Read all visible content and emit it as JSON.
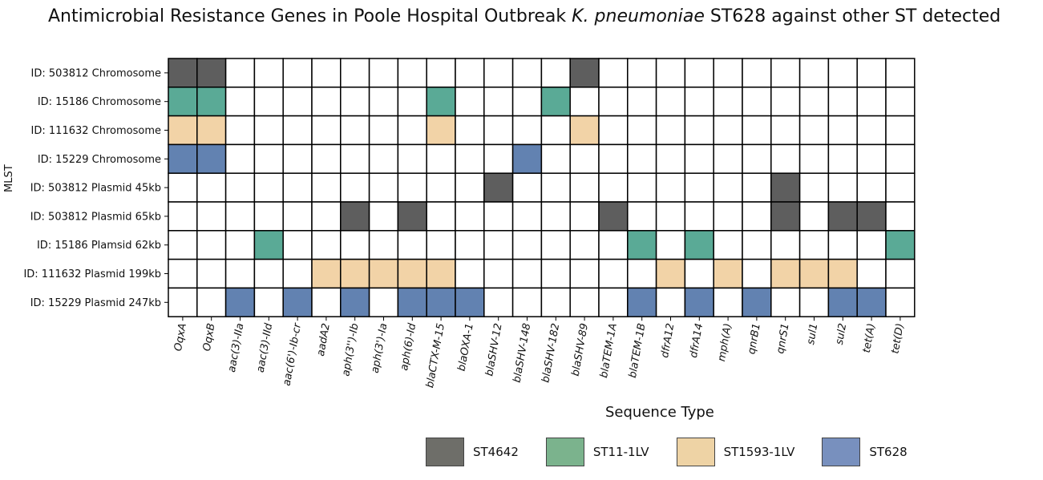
{
  "title": {
    "prefix": "Antimicrobial Resistance Genes in Poole Hospital Outbreak ",
    "italic": "K. pneumoniae",
    "suffix": " ST628 against other ST detected"
  },
  "chart_data": {
    "type": "heatmap",
    "ylabel": "MLST",
    "xlabel": "Sequence Type",
    "columns": [
      "OqxA",
      "OqxB",
      "aac(3)-IIa",
      "aac(3)-IId",
      "aac(6')-Ib-cr",
      "aadA2",
      "aph(3'')-Ib",
      "aph(3')-Ia",
      "aph(6)-Id",
      "blaCTX-M-15",
      "blaOXA-1",
      "blaSHV-12",
      "blaSHV-148",
      "blaSHV-182",
      "blaSHV-89",
      "blaTEM-1A",
      "blaTEM-1B",
      "dfrA12",
      "dfrA14",
      "mph(A)",
      "qnrB1",
      "qnrS1",
      "sul1",
      "sul2",
      "tet(A)",
      "tet(D)"
    ],
    "rows": [
      {
        "label": "ID: 503812 Chromosome",
        "st": "ST4642",
        "genes": [
          "OqxA",
          "OqxB",
          "blaSHV-89"
        ]
      },
      {
        "label": "ID: 15186 Chromosome",
        "st": "ST11-1LV",
        "genes": [
          "OqxA",
          "OqxB",
          "blaCTX-M-15",
          "blaSHV-182"
        ]
      },
      {
        "label": "ID: 111632 Chromosome",
        "st": "ST1593-1LV",
        "genes": [
          "OqxA",
          "OqxB",
          "blaCTX-M-15",
          "blaSHV-89"
        ]
      },
      {
        "label": "ID: 15229 Chromosome",
        "st": "ST628",
        "genes": [
          "OqxA",
          "OqxB",
          "blaSHV-148"
        ]
      },
      {
        "label": "ID: 503812 Plasmid 45kb",
        "st": "ST4642",
        "genes": [
          "blaSHV-12",
          "qnrS1"
        ]
      },
      {
        "label": "ID: 503812 Plasmid 65kb",
        "st": "ST4642",
        "genes": [
          "aph(3'')-Ib",
          "aph(6)-Id",
          "blaTEM-1A",
          "qnrS1",
          "sul2",
          "tet(A)"
        ]
      },
      {
        "label": "ID: 15186 Plamsid 62kb",
        "st": "ST11-1LV",
        "genes": [
          "aac(3)-IId",
          "blaTEM-1B",
          "dfrA14",
          "tet(D)"
        ]
      },
      {
        "label": "ID: 111632 Plasmid 199kb",
        "st": "ST1593-1LV",
        "genes": [
          "aadA2",
          "aph(3'')-Ib",
          "aph(3')-Ia",
          "aph(6)-Id",
          "blaCTX-M-15",
          "dfrA12",
          "mph(A)",
          "qnrS1",
          "sul1",
          "sul2"
        ]
      },
      {
        "label": "ID: 15229 Plasmid 247kb",
        "st": "ST628",
        "genes": [
          "aac(3)-IIa",
          "aac(6')-Ib-cr",
          "aph(3'')-Ib",
          "aph(6)-Id",
          "blaCTX-M-15",
          "blaOXA-1",
          "blaTEM-1B",
          "dfrA14",
          "qnrB1",
          "sul2",
          "tet(A)"
        ]
      }
    ],
    "legend": [
      {
        "name": "ST4642",
        "cell_color": "#5e5e5e",
        "legend_color": "#6e6e69"
      },
      {
        "name": "ST11-1LV",
        "cell_color": "#5aaa96",
        "legend_color": "#7bb38d"
      },
      {
        "name": "ST1593-1LV",
        "cell_color": "#f2d3a7",
        "legend_color": "#eed3a5"
      },
      {
        "name": "ST628",
        "cell_color": "#6282b1",
        "legend_color": "#7890be"
      }
    ],
    "legend_placement": "bottom-right",
    "grid": true
  }
}
